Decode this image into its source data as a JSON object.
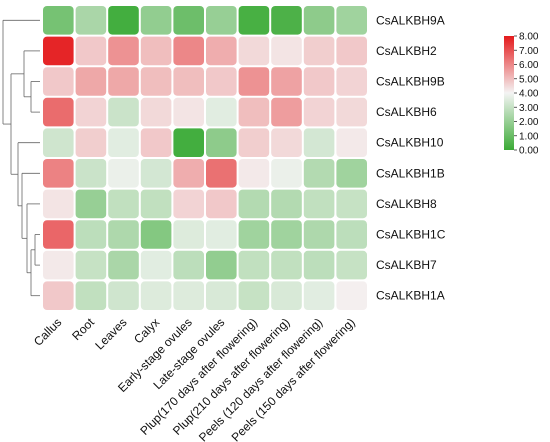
{
  "chart_data": {
    "type": "heatmap",
    "title": "",
    "xlabel": "",
    "ylabel": "",
    "columns": [
      "Callus",
      "Root",
      "Leaves",
      "Calyx",
      "Early-stage ovules",
      "Late-stage ovules",
      "Plup(170 days after flowering)",
      "Plup(210 days after flowering)",
      "Peels (120 days after flowering)",
      "Peels (150 days after flowering)"
    ],
    "rows": [
      "CsALKBH9A",
      "CsALKBH2",
      "CsALKBH9B",
      "CsALKBH6",
      "CsALKBH10",
      "CsALKBH1B",
      "CsALKBH8",
      "CsALKBH1C",
      "CsALKBH7",
      "CsALKBH1A"
    ],
    "values": [
      [
        1.3,
        2.4,
        0.2,
        1.9,
        1.1,
        2.0,
        0.3,
        0.4,
        1.8,
        2.2
      ],
      [
        7.8,
        4.8,
        5.8,
        5.0,
        6.0,
        5.3,
        4.5,
        4.3,
        4.7,
        4.8
      ],
      [
        4.8,
        5.4,
        5.4,
        5.0,
        5.0,
        4.8,
        5.8,
        5.5,
        4.8,
        4.6
      ],
      [
        6.5,
        4.6,
        3.1,
        4.5,
        4.3,
        3.6,
        5.0,
        5.6,
        4.6,
        4.5
      ],
      [
        3.2,
        4.7,
        3.6,
        4.8,
        0.2,
        1.8,
        4.7,
        4.5,
        3.3,
        4.2
      ],
      [
        6.1,
        3.1,
        3.8,
        3.3,
        5.3,
        6.4,
        4.2,
        3.8,
        2.6,
        2.2
      ],
      [
        4.3,
        2.0,
        2.9,
        2.9,
        4.6,
        4.8,
        2.6,
        2.6,
        2.9,
        3.0
      ],
      [
        6.6,
        2.8,
        2.5,
        1.6,
        3.5,
        3.6,
        2.2,
        2.2,
        2.5,
        2.8
      ],
      [
        4.2,
        3.0,
        2.4,
        3.6,
        2.8,
        1.9,
        2.9,
        2.9,
        2.8,
        3.0
      ],
      [
        4.8,
        2.9,
        3.2,
        3.5,
        3.5,
        3.4,
        3.0,
        3.4,
        3.6,
        4.1
      ]
    ],
    "color_scale": {
      "min": 0.0,
      "max": 8.0,
      "low_color": "#3aaa35",
      "mid_color": "#f4f4f4",
      "high_color": "#e41a1c",
      "ticks": [
        "0.00",
        "1.00",
        "2.00",
        "3.00",
        "4.00",
        "5.00",
        "6.00",
        "7.00",
        "8.00"
      ],
      "legend_position": "top-right"
    },
    "dendrogram": "rows"
  }
}
